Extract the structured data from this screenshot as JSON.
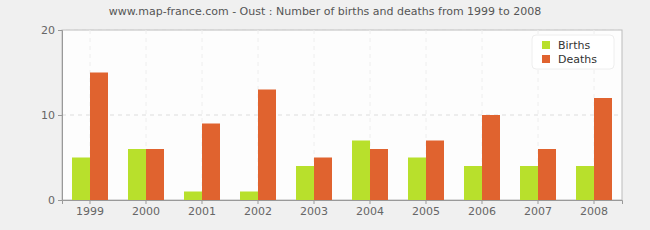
{
  "chart_data": {
    "type": "bar",
    "title": "www.map-france.com - Oust : Number of births and deaths from 1999 to 2008",
    "categories": [
      "1999",
      "2000",
      "2001",
      "2002",
      "2003",
      "2004",
      "2005",
      "2006",
      "2007",
      "2008"
    ],
    "series": [
      {
        "name": "Births",
        "color": "#b8e02c",
        "values": [
          5,
          6,
          1,
          1,
          4,
          7,
          5,
          4,
          4,
          4
        ]
      },
      {
        "name": "Deaths",
        "color": "#e0632f",
        "values": [
          15,
          6,
          9,
          13,
          5,
          6,
          7,
          10,
          6,
          12
        ]
      }
    ],
    "ylim": [
      0,
      20
    ],
    "yticks": [
      0,
      10,
      20
    ],
    "grid": true,
    "legend": "top-right"
  }
}
